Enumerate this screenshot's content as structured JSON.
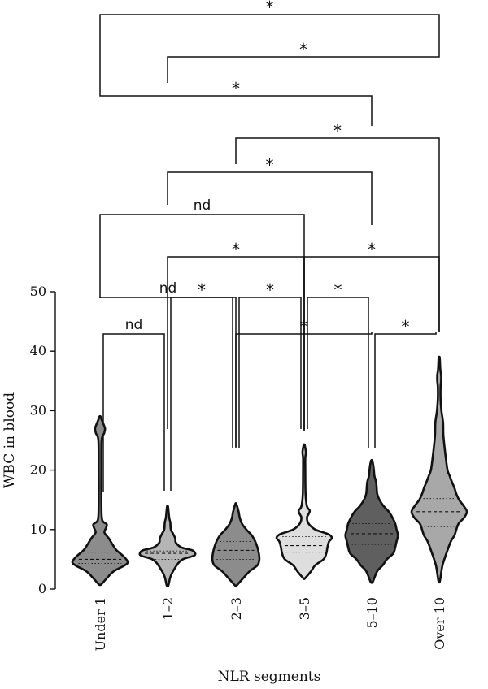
{
  "chart_data": {
    "type": "violin",
    "xlabel": "NLR segments",
    "ylabel": "WBC in blood",
    "ylim": [
      0,
      50
    ],
    "yticks": [
      0,
      10,
      20,
      30,
      40,
      50
    ],
    "categories": [
      "Under 1",
      "1–2",
      "2–3",
      "3–5",
      "5–10",
      "Over 10"
    ],
    "violins": [
      {
        "category": "Under 1",
        "color": "#8c8c8c",
        "median": 5.0,
        "q1": 4.3,
        "q3": 6.2,
        "profile": [
          [
            0.8,
            0.05
          ],
          [
            2,
            0.28
          ],
          [
            3,
            0.5
          ],
          [
            4,
            0.9
          ],
          [
            4.6,
            1.0
          ],
          [
            5.5,
            0.85
          ],
          [
            6.5,
            0.6
          ],
          [
            7.5,
            0.45
          ],
          [
            8.5,
            0.32
          ],
          [
            9.5,
            0.16
          ],
          [
            10.3,
            0.22
          ],
          [
            10.9,
            0.24
          ],
          [
            11.6,
            0.08
          ],
          [
            14,
            0.05
          ],
          [
            20,
            0.05
          ],
          [
            25,
            0.06
          ],
          [
            26.2,
            0.15
          ],
          [
            27,
            0.18
          ],
          [
            27.8,
            0.12
          ],
          [
            28.6,
            0.05
          ],
          [
            29,
            0.02
          ]
        ]
      },
      {
        "category": "1–2",
        "color": "#b5b5b5",
        "median": 6.0,
        "q1": 5.0,
        "q3": 6.4,
        "profile": [
          [
            0.6,
            0.03
          ],
          [
            2,
            0.1
          ],
          [
            3,
            0.2
          ],
          [
            4.3,
            0.38
          ],
          [
            5,
            0.55
          ],
          [
            5.6,
            0.95
          ],
          [
            6,
            1.0
          ],
          [
            6.5,
            0.9
          ],
          [
            7,
            0.5
          ],
          [
            7.8,
            0.3
          ],
          [
            8.5,
            0.28
          ],
          [
            9.3,
            0.2
          ],
          [
            10,
            0.12
          ],
          [
            11.2,
            0.1
          ],
          [
            12,
            0.06
          ],
          [
            13.8,
            0.02
          ]
        ]
      },
      {
        "category": "2–3",
        "color": "#8c8c8c",
        "median": 6.5,
        "q1": 5.0,
        "q3": 8.0,
        "profile": [
          [
            0.6,
            0.03
          ],
          [
            2,
            0.3
          ],
          [
            3,
            0.5
          ],
          [
            4,
            0.78
          ],
          [
            5,
            0.85
          ],
          [
            6,
            0.83
          ],
          [
            7,
            0.78
          ],
          [
            8,
            0.7
          ],
          [
            9,
            0.58
          ],
          [
            10,
            0.38
          ],
          [
            11,
            0.22
          ],
          [
            12,
            0.14
          ],
          [
            13,
            0.1
          ],
          [
            14.3,
            0.02
          ]
        ]
      },
      {
        "category": "3–5",
        "color": "#dedede",
        "median": 7.3,
        "q1": 6.2,
        "q3": 8.8,
        "profile": [
          [
            1.8,
            0.03
          ],
          [
            3,
            0.25
          ],
          [
            4,
            0.4
          ],
          [
            5,
            0.7
          ],
          [
            6,
            0.8
          ],
          [
            7,
            0.84
          ],
          [
            8,
            0.9
          ],
          [
            8.6,
            1.0
          ],
          [
            9.2,
            0.88
          ],
          [
            10,
            0.4
          ],
          [
            11,
            0.16
          ],
          [
            12,
            0.1
          ],
          [
            12.6,
            0.16
          ],
          [
            13.2,
            0.2
          ],
          [
            13.9,
            0.1
          ],
          [
            16,
            0.05
          ],
          [
            20,
            0.04
          ],
          [
            22,
            0.04
          ],
          [
            23,
            0.06
          ],
          [
            24.2,
            0.02
          ]
        ]
      },
      {
        "category": "5–10",
        "color": "#5f5f5f",
        "median": 9.3,
        "q1": 7.5,
        "q3": 11.0,
        "profile": [
          [
            1.2,
            0.04
          ],
          [
            3,
            0.2
          ],
          [
            4,
            0.4
          ],
          [
            5,
            0.55
          ],
          [
            6,
            0.78
          ],
          [
            7,
            0.85
          ],
          [
            8,
            0.9
          ],
          [
            9,
            0.95
          ],
          [
            10,
            0.9
          ],
          [
            11,
            0.85
          ],
          [
            12,
            0.75
          ],
          [
            13,
            0.62
          ],
          [
            14,
            0.42
          ],
          [
            15,
            0.28
          ],
          [
            16,
            0.2
          ],
          [
            17,
            0.18
          ],
          [
            18,
            0.16
          ],
          [
            19,
            0.1
          ],
          [
            20,
            0.08
          ],
          [
            21,
            0.05
          ],
          [
            21.6,
            0.02
          ]
        ]
      },
      {
        "category": "Over 10",
        "color": "#a8a8a8",
        "median": 13.0,
        "q1": 10.5,
        "q3": 15.2,
        "profile": [
          [
            1.2,
            0.02
          ],
          [
            2,
            0.05
          ],
          [
            4,
            0.12
          ],
          [
            6,
            0.26
          ],
          [
            8,
            0.42
          ],
          [
            9,
            0.55
          ],
          [
            10,
            0.62
          ],
          [
            11,
            0.7
          ],
          [
            12,
            0.9
          ],
          [
            13,
            1.0
          ],
          [
            14,
            0.88
          ],
          [
            15,
            0.72
          ],
          [
            16,
            0.62
          ],
          [
            17,
            0.55
          ],
          [
            18,
            0.46
          ],
          [
            19,
            0.38
          ],
          [
            20,
            0.3
          ],
          [
            22,
            0.24
          ],
          [
            24,
            0.19
          ],
          [
            26,
            0.15
          ],
          [
            28,
            0.14
          ],
          [
            30,
            0.08
          ],
          [
            32,
            0.05
          ],
          [
            34,
            0.05
          ],
          [
            35,
            0.07
          ],
          [
            36,
            0.07
          ],
          [
            37,
            0.04
          ],
          [
            38.9,
            0.02
          ]
        ]
      }
    ],
    "comparisons": [
      {
        "a": 0,
        "b": 1,
        "label": "nd"
      },
      {
        "a": 1,
        "b": 2,
        "label": "*"
      },
      {
        "a": 2,
        "b": 3,
        "label": "*"
      },
      {
        "a": 3,
        "b": 4,
        "label": "*"
      },
      {
        "a": 4,
        "b": 5,
        "label": "*"
      },
      {
        "a": 0,
        "b": 2,
        "label": "nd"
      },
      {
        "a": 2,
        "b": 4,
        "label": "*"
      },
      {
        "a": 1,
        "b": 3,
        "label": "*"
      },
      {
        "a": 3,
        "b": 5,
        "label": "*"
      },
      {
        "a": 0,
        "b": 3,
        "label": "nd"
      },
      {
        "a": 1,
        "b": 4,
        "label": "*"
      },
      {
        "a": 2,
        "b": 5,
        "label": "*"
      },
      {
        "a": 0,
        "b": 4,
        "label": "*"
      },
      {
        "a": 1,
        "b": 5,
        "label": "*"
      },
      {
        "a": 0,
        "b": 5,
        "label": "*"
      }
    ]
  }
}
